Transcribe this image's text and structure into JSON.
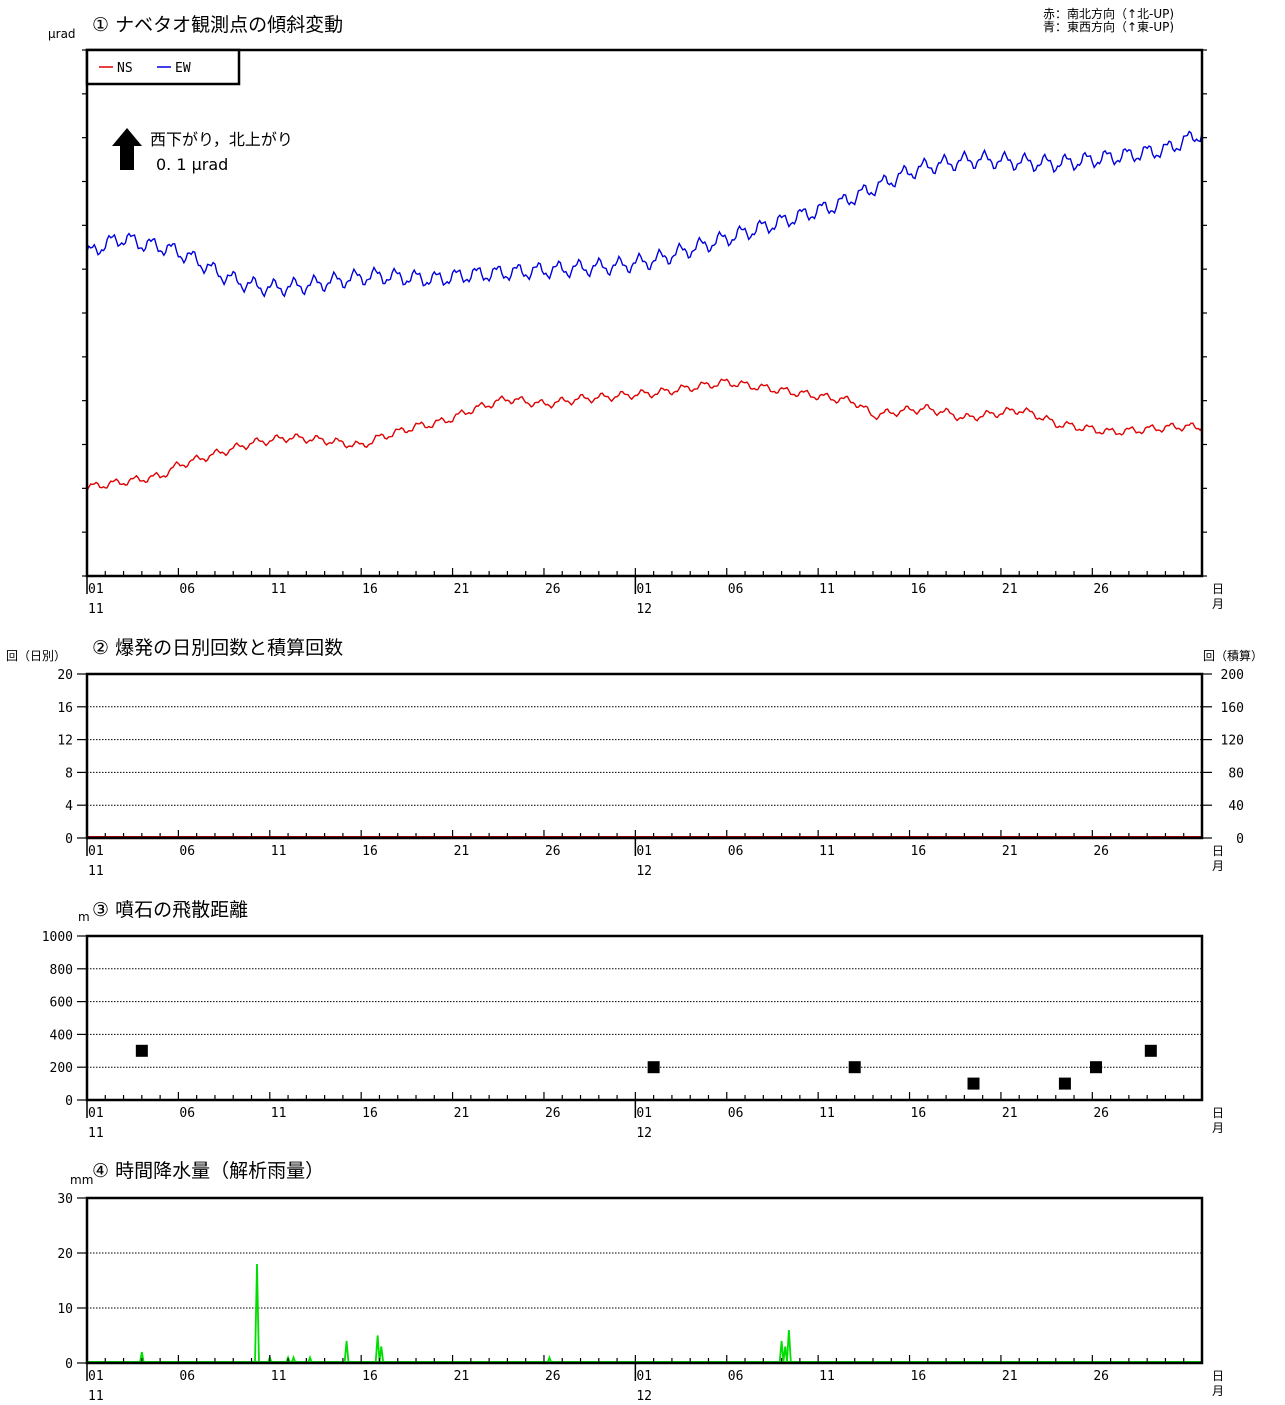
{
  "header_note": {
    "line1": "赤：南北方向（↑北-UP)",
    "line2": "青：東西方向（↑東-UP)"
  },
  "x_axis": {
    "tick_labels": [
      "01",
      "06",
      "11",
      "16",
      "21",
      "26",
      "01",
      "06",
      "11",
      "16",
      "21",
      "26"
    ],
    "tick_days": [
      1,
      6,
      11,
      16,
      21,
      26,
      31,
      36,
      41,
      46,
      51,
      56
    ],
    "month_labels": [
      "11",
      "12"
    ],
    "month_label_days": [
      1,
      31
    ],
    "unit_top": "日",
    "unit_bottom": "月",
    "day_range": [
      1,
      62
    ]
  },
  "chart_data": [
    {
      "id": "tilt",
      "type": "line",
      "title": "① ナベタオ観測点の傾斜変動",
      "ylabel": "μrad",
      "legend": [
        "— NS",
        "— EW"
      ],
      "scale_note": {
        "line1": "西下がり，北上がり",
        "line2": "0. 1 μrad"
      },
      "series": [
        {
          "name": "NS",
          "color": "#e00000",
          "x": [
            1,
            2,
            3,
            4,
            5,
            6,
            7,
            8,
            9,
            10,
            11,
            12,
            13,
            14,
            15,
            16,
            17,
            18,
            19,
            20,
            21,
            22,
            23,
            24,
            25,
            26,
            27,
            28,
            29,
            30,
            31,
            32,
            33,
            34,
            35,
            36,
            37,
            38,
            39,
            40,
            41,
            42,
            43,
            44,
            45,
            46,
            47,
            48,
            49,
            50,
            51,
            52,
            53,
            54,
            55,
            56,
            57,
            58,
            59,
            60,
            61,
            62
          ],
          "y": [
            -0.34,
            -0.335,
            -0.33,
            -0.325,
            -0.32,
            -0.3,
            -0.29,
            -0.28,
            -0.27,
            -0.26,
            -0.255,
            -0.25,
            -0.252,
            -0.255,
            -0.26,
            -0.265,
            -0.25,
            -0.24,
            -0.23,
            -0.225,
            -0.215,
            -0.2,
            -0.19,
            -0.18,
            -0.185,
            -0.19,
            -0.185,
            -0.18,
            -0.178,
            -0.175,
            -0.172,
            -0.17,
            -0.165,
            -0.16,
            -0.155,
            -0.15,
            -0.155,
            -0.16,
            -0.165,
            -0.17,
            -0.175,
            -0.18,
            -0.185,
            -0.21,
            -0.205,
            -0.2,
            -0.198,
            -0.205,
            -0.215,
            -0.21,
            -0.205,
            -0.2,
            -0.21,
            -0.225,
            -0.23,
            -0.235,
            -0.24,
            -0.238,
            -0.235,
            -0.232,
            -0.23,
            -0.232
          ]
        },
        {
          "name": "EW",
          "color": "#0000dd",
          "x": [
            1,
            2,
            3,
            4,
            5,
            6,
            7,
            8,
            9,
            10,
            11,
            12,
            13,
            14,
            15,
            16,
            17,
            18,
            19,
            20,
            21,
            22,
            23,
            24,
            25,
            26,
            27,
            28,
            29,
            30,
            31,
            32,
            33,
            34,
            35,
            36,
            37,
            38,
            39,
            40,
            41,
            42,
            43,
            44,
            45,
            46,
            47,
            48,
            49,
            50,
            51,
            52,
            53,
            54,
            55,
            56,
            57,
            58,
            59,
            60,
            61,
            62
          ],
          "y": [
            0.08,
            0.1,
            0.11,
            0.1,
            0.095,
            0.085,
            0.07,
            0.05,
            0.035,
            0.025,
            0.02,
            0.022,
            0.025,
            0.03,
            0.035,
            0.04,
            0.042,
            0.04,
            0.038,
            0.036,
            0.04,
            0.044,
            0.046,
            0.048,
            0.05,
            0.052,
            0.054,
            0.056,
            0.058,
            0.06,
            0.065,
            0.07,
            0.08,
            0.09,
            0.1,
            0.11,
            0.12,
            0.13,
            0.14,
            0.15,
            0.16,
            0.17,
            0.185,
            0.2,
            0.215,
            0.23,
            0.24,
            0.245,
            0.25,
            0.252,
            0.25,
            0.248,
            0.246,
            0.245,
            0.248,
            0.252,
            0.256,
            0.26,
            0.265,
            0.27,
            0.285,
            0.3
          ]
        }
      ],
      "y_ticks": 13
    },
    {
      "id": "eruptions",
      "type": "bar",
      "title": "② 爆発の日別回数と積算回数",
      "ylabel_left": "回（日別）",
      "ylabel_right": "回（積算）",
      "ylim": [
        0,
        20
      ],
      "yticks_left": [
        "0",
        "4",
        "8",
        "12",
        "16",
        "20"
      ],
      "yticks_left_values": [
        0,
        4,
        8,
        12,
        16,
        20
      ],
      "yticks_right": [
        "0",
        "40",
        "80",
        "120",
        "160",
        "200"
      ],
      "grid": true,
      "daily_counts": [],
      "cumulative": 0,
      "cumulative_color": "#c00000"
    },
    {
      "id": "ejecta",
      "type": "scatter",
      "title": "③ 噴石の飛散距離",
      "ylabel": "m",
      "ylim": [
        0,
        1000
      ],
      "yticks": [
        "0",
        "200",
        "400",
        "600",
        "800",
        "1000"
      ],
      "yticks_values": [
        0,
        200,
        400,
        600,
        800,
        1000
      ],
      "grid": true,
      "points": [
        {
          "x": 4,
          "y": 300
        },
        {
          "x": 32,
          "y": 200
        },
        {
          "x": 43,
          "y": 200
        },
        {
          "x": 49.5,
          "y": 100
        },
        {
          "x": 54.5,
          "y": 100
        },
        {
          "x": 56.2,
          "y": 200
        },
        {
          "x": 59.2,
          "y": 300
        }
      ]
    },
    {
      "id": "rain",
      "type": "area",
      "title": "④ 時間降水量（解析雨量）",
      "ylabel": "mm",
      "ylim": [
        0,
        30
      ],
      "yticks": [
        "0",
        "10",
        "20",
        "30"
      ],
      "yticks_values": [
        0,
        10,
        20,
        30
      ],
      "grid": true,
      "color": "#00dd00",
      "spikes": [
        {
          "x": 4,
          "y": 2
        },
        {
          "x": 10.3,
          "y": 18
        },
        {
          "x": 11,
          "y": 1
        },
        {
          "x": 12,
          "y": 1
        },
        {
          "x": 12.3,
          "y": 1
        },
        {
          "x": 13.2,
          "y": 1
        },
        {
          "x": 15.2,
          "y": 4
        },
        {
          "x": 16.9,
          "y": 5
        },
        {
          "x": 17.1,
          "y": 3
        },
        {
          "x": 26.3,
          "y": 1
        },
        {
          "x": 39,
          "y": 4
        },
        {
          "x": 39.2,
          "y": 3
        },
        {
          "x": 39.4,
          "y": 6
        }
      ]
    }
  ]
}
